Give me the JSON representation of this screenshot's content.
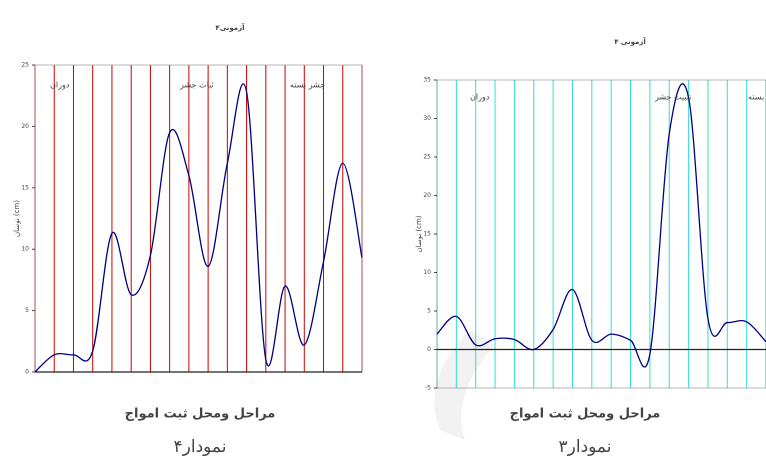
{
  "chart_data": [
    {
      "type": "line",
      "title": "آزمونی۴",
      "y_label": "نوسان (cm)",
      "x_label": "مراحل ومحل ثبت امواج",
      "caption": "نمودار۴",
      "annotations": [
        "دوران",
        "ثبات جشر",
        "جشر بسته"
      ],
      "categories": [
        null,
        null,
        null,
        null,
        null,
        null,
        null,
        null,
        null,
        null,
        null,
        null,
        null,
        null,
        null,
        null,
        null,
        null
      ],
      "series": [
        {
          "color": "#000080",
          "values": [
            0,
            1.4,
            1.4,
            1.7,
            11.3,
            6.3,
            9.5,
            19.5,
            16,
            8.6,
            17,
            22.8,
            1,
            7,
            2.2,
            9,
            17,
            9.3
          ]
        }
      ],
      "ylim": [
        0,
        25
      ],
      "yticks": [
        0,
        5,
        10,
        15,
        20,
        25
      ],
      "grid_color": "#cc0000"
    },
    {
      "type": "line",
      "title": "آزمونی ۴",
      "y_label": "نوسان (cm)",
      "x_label": "مراحل ومحل ثبت امواج",
      "caption": "نمودار۳",
      "annotations": [
        "دوران",
        "تثبیت جشر",
        "جشر بسته"
      ],
      "categories": [
        null,
        null,
        null,
        null,
        null,
        null,
        null,
        null,
        null,
        null,
        null,
        null,
        null,
        null,
        null,
        null,
        null,
        null
      ],
      "series": [
        {
          "color": "#000080",
          "values": [
            2,
            4.3,
            0.6,
            1.4,
            1.3,
            0,
            2.6,
            7.8,
            1.2,
            2,
            1.2,
            -0.6,
            28,
            32.7,
            4,
            3.5,
            3.6,
            1
          ]
        }
      ],
      "ylim": [
        -5,
        35
      ],
      "yticks": [
        -5,
        0,
        5,
        10,
        15,
        20,
        25,
        30,
        35
      ],
      "grid_color": "#33dddd"
    }
  ]
}
